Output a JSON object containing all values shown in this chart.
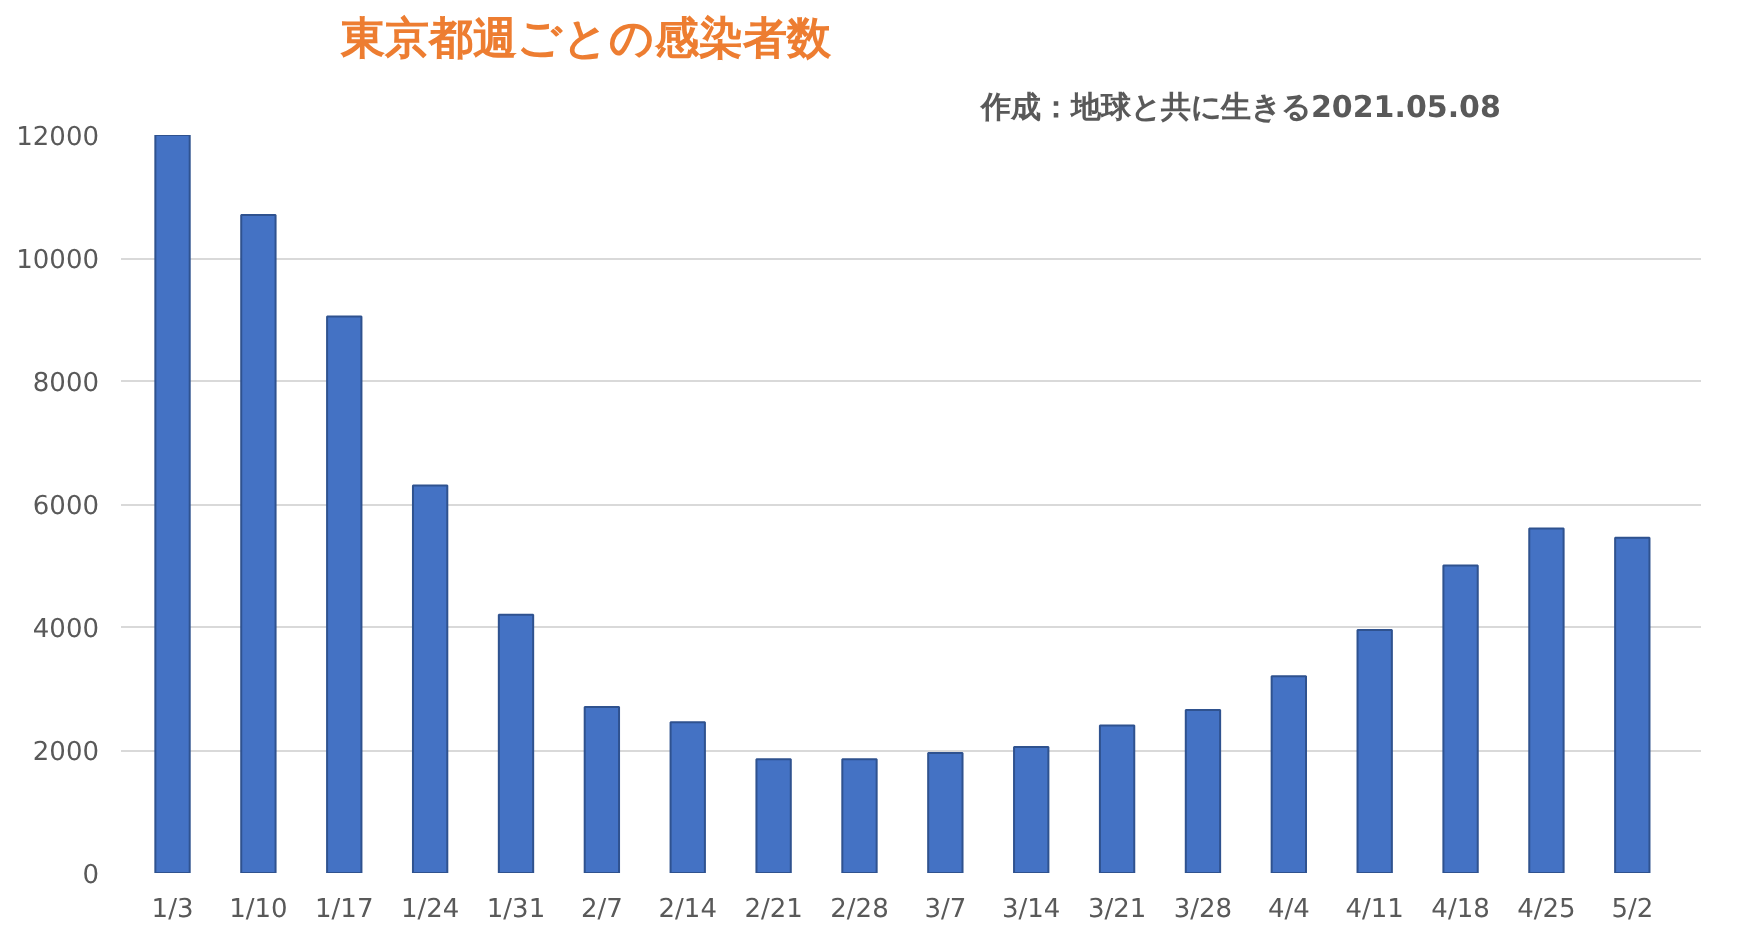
{
  "chart_data": {
    "type": "bar",
    "title": "東京都週ごとの感染者数",
    "subtitle": "作成：地球と共に生きる2021.05.08",
    "categories": [
      "1/3",
      "1/10",
      "1/17",
      "1/24",
      "1/31",
      "2/7",
      "2/14",
      "2/21",
      "2/28",
      "3/7",
      "3/14",
      "3/21",
      "3/28",
      "4/4",
      "4/11",
      "4/18",
      "4/25",
      "5/2"
    ],
    "values": [
      12000,
      10700,
      9050,
      6300,
      4200,
      2700,
      2450,
      1850,
      1850,
      1950,
      2050,
      2400,
      2650,
      3200,
      3950,
      5000,
      5600,
      5450
    ],
    "color": "#4472c4",
    "ylim": [
      0,
      12000
    ],
    "yticks": [
      0,
      2000,
      4000,
      6000,
      8000,
      10000,
      12000
    ],
    "grid": "y"
  }
}
